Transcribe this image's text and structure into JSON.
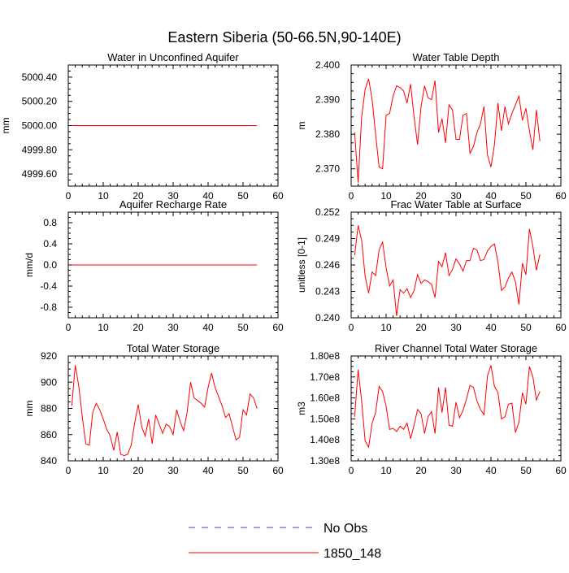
{
  "page_title": "Eastern Siberia (50-66.5N,90-140E)",
  "legend": {
    "entries": [
      {
        "label": "No Obs",
        "color": "#3a3ad6",
        "style": "dashed"
      },
      {
        "label": "1850_148",
        "color": "#ff0000",
        "style": "solid"
      }
    ]
  },
  "chart_data": [
    {
      "type": "line",
      "title": "Water in Unconfined Aquifer",
      "ylabel": "mm",
      "xlim": [
        0,
        60
      ],
      "ylim": [
        4999.5,
        5000.5
      ],
      "xticks": [
        0,
        10,
        20,
        30,
        40,
        50,
        60
      ],
      "yticks": [
        4999.6,
        4999.8,
        5000.0,
        5000.2,
        5000.4
      ],
      "ytick_labels": [
        "4999.60",
        "4999.80",
        "5000.00",
        "5000.20",
        "5000.40"
      ],
      "series": [
        {
          "color": "#ff0000",
          "x": [
            1,
            54
          ],
          "y": [
            5000.0,
            5000.0
          ]
        }
      ]
    },
    {
      "type": "line",
      "title": "Water Table Depth",
      "ylabel": "m",
      "xlim": [
        0,
        60
      ],
      "ylim": [
        2.365,
        2.4
      ],
      "xticks": [
        0,
        10,
        20,
        30,
        40,
        50,
        60
      ],
      "yticks": [
        2.37,
        2.38,
        2.39,
        2.4
      ],
      "ytick_labels": [
        "2.370",
        "2.380",
        "2.390",
        "2.400"
      ],
      "series": [
        {
          "color": "#ff0000",
          "x": [
            1,
            2,
            3,
            4,
            5,
            6,
            7,
            8,
            9,
            10,
            11,
            12,
            13,
            14,
            15,
            16,
            17,
            18,
            19,
            20,
            21,
            22,
            23,
            24,
            25,
            26,
            27,
            28,
            29,
            30,
            31,
            32,
            33,
            34,
            35,
            36,
            37,
            38,
            39,
            40,
            41,
            42,
            43,
            44,
            45,
            46,
            47,
            48,
            49,
            50,
            51,
            52,
            53,
            54
          ],
          "y": [
            2.3805,
            2.366,
            2.385,
            2.393,
            2.396,
            2.39,
            2.38,
            2.3705,
            2.37,
            2.3855,
            2.386,
            2.391,
            2.394,
            2.3935,
            2.3925,
            2.389,
            2.3945,
            2.385,
            2.377,
            2.388,
            2.394,
            2.3905,
            2.39,
            2.3955,
            2.3805,
            2.3845,
            2.3775,
            2.3885,
            2.387,
            2.3785,
            2.3785,
            2.3855,
            2.386,
            2.3745,
            2.3765,
            2.3805,
            2.383,
            2.388,
            2.374,
            2.3705,
            2.377,
            2.389,
            2.381,
            2.388,
            2.383,
            2.386,
            2.3885,
            2.391,
            2.384,
            2.3875,
            2.381,
            2.3755,
            2.387,
            2.378
          ]
        }
      ]
    },
    {
      "type": "line",
      "title": "Aquifer Recharge Rate",
      "ylabel": "mm/d",
      "xlim": [
        0,
        60
      ],
      "ylim": [
        -1.0,
        1.0
      ],
      "xticks": [
        0,
        10,
        20,
        30,
        40,
        50,
        60
      ],
      "yticks": [
        -0.8,
        -0.4,
        0.0,
        0.4,
        0.8
      ],
      "ytick_labels": [
        "-0.8",
        "-0.4",
        "0.0",
        "0.4",
        "0.8"
      ],
      "series": [
        {
          "color": "#ff0000",
          "x": [
            1,
            54
          ],
          "y": [
            0.0,
            0.0
          ]
        }
      ]
    },
    {
      "type": "line",
      "title": "Frac Water Table at Surface",
      "ylabel": "unitless [0-1]",
      "xlim": [
        0,
        60
      ],
      "ylim": [
        0.24,
        0.252
      ],
      "xticks": [
        0,
        10,
        20,
        30,
        40,
        50,
        60
      ],
      "yticks": [
        0.24,
        0.243,
        0.246,
        0.249,
        0.252
      ],
      "ytick_labels": [
        "0.240",
        "0.243",
        "0.246",
        "0.249",
        "0.252"
      ],
      "series": [
        {
          "color": "#ff0000",
          "x": [
            1,
            2,
            3,
            4,
            5,
            6,
            7,
            8,
            9,
            10,
            11,
            12,
            13,
            14,
            15,
            16,
            17,
            18,
            19,
            20,
            21,
            22,
            23,
            24,
            25,
            26,
            27,
            28,
            29,
            30,
            31,
            32,
            33,
            34,
            35,
            36,
            37,
            38,
            39,
            40,
            41,
            42,
            43,
            44,
            45,
            46,
            47,
            48,
            49,
            50,
            51,
            52,
            53,
            54
          ],
          "y": [
            0.2471,
            0.2505,
            0.2488,
            0.2447,
            0.2428,
            0.2452,
            0.2448,
            0.2477,
            0.2486,
            0.2457,
            0.2436,
            0.2443,
            0.2402,
            0.2432,
            0.2428,
            0.2433,
            0.2423,
            0.2431,
            0.2449,
            0.2439,
            0.2443,
            0.2441,
            0.2438,
            0.2423,
            0.2464,
            0.2458,
            0.2474,
            0.2448,
            0.2455,
            0.2467,
            0.2461,
            0.2453,
            0.2465,
            0.2465,
            0.2479,
            0.2477,
            0.2465,
            0.2466,
            0.2476,
            0.2481,
            0.2484,
            0.2463,
            0.2431,
            0.2435,
            0.2445,
            0.2452,
            0.2441,
            0.2415,
            0.2462,
            0.2449,
            0.2501,
            0.2481,
            0.2454,
            0.2472
          ]
        }
      ]
    },
    {
      "type": "line",
      "title": "Total Water Storage",
      "ylabel": "mm",
      "xlim": [
        0,
        60
      ],
      "ylim": [
        840,
        920
      ],
      "xticks": [
        0,
        10,
        20,
        30,
        40,
        50,
        60
      ],
      "yticks": [
        840,
        860,
        880,
        900,
        920
      ],
      "ytick_labels": [
        "840",
        "860",
        "880",
        "900",
        "920"
      ],
      "series": [
        {
          "color": "#ff0000",
          "x": [
            1,
            2,
            3,
            4,
            5,
            6,
            7,
            8,
            9,
            10,
            11,
            12,
            13,
            14,
            15,
            16,
            17,
            18,
            19,
            20,
            21,
            22,
            23,
            24,
            25,
            26,
            27,
            28,
            29,
            30,
            31,
            32,
            33,
            34,
            35,
            36,
            37,
            38,
            39,
            40,
            41,
            42,
            43,
            44,
            45,
            46,
            47,
            48,
            49,
            50,
            51,
            52,
            53,
            54
          ],
          "y": [
            882,
            913,
            897,
            874,
            853,
            852,
            877,
            884,
            879,
            872,
            864,
            859,
            848,
            862,
            845,
            844,
            845,
            852,
            869,
            883,
            866,
            859,
            872,
            853,
            875,
            868,
            861,
            868,
            866,
            860,
            879,
            870,
            863,
            877,
            900,
            888,
            886,
            884,
            881,
            896,
            907,
            896,
            889,
            882,
            873,
            876,
            866,
            856,
            858,
            879,
            875,
            891,
            888,
            880
          ]
        }
      ]
    },
    {
      "type": "line",
      "title": "River Channel Total Water Storage",
      "ylabel": "m3",
      "xlim": [
        0,
        60
      ],
      "ylim": [
        130000000,
        180000000
      ],
      "xticks": [
        0,
        10,
        20,
        30,
        40,
        50,
        60
      ],
      "yticks": [
        130000000,
        140000000,
        150000000,
        160000000,
        170000000,
        180000000
      ],
      "ytick_labels": [
        "1.30e8",
        "1.40e8",
        "1.50e8",
        "1.60e8",
        "1.70e8",
        "1.80e8"
      ],
      "series": [
        {
          "color": "#ff0000",
          "x": [
            1,
            2,
            3,
            4,
            5,
            6,
            7,
            8,
            9,
            10,
            11,
            12,
            13,
            14,
            15,
            16,
            17,
            18,
            19,
            20,
            21,
            22,
            23,
            24,
            25,
            26,
            27,
            28,
            29,
            30,
            31,
            32,
            33,
            34,
            35,
            36,
            37,
            38,
            39,
            40,
            41,
            42,
            43,
            44,
            45,
            46,
            47,
            48,
            49,
            50,
            51,
            52,
            53,
            54
          ],
          "y": [
            151000000,
            173500000,
            158500000,
            139500000,
            136500000,
            148000000,
            153000000,
            165500000,
            163000000,
            156000000,
            145000000,
            145500000,
            144000000,
            146500000,
            145000000,
            148000000,
            140500000,
            147000000,
            154500000,
            152500000,
            143000000,
            151000000,
            153500000,
            143000000,
            165000000,
            153000000,
            165000000,
            147000000,
            146500000,
            158000000,
            150500000,
            154000000,
            159500000,
            166000000,
            165000000,
            158500000,
            154500000,
            152000000,
            170500000,
            175500000,
            165500000,
            162500000,
            150000000,
            151000000,
            157000000,
            157500000,
            143500000,
            148500000,
            162500000,
            157000000,
            175000000,
            170000000,
            159000000,
            163000000
          ]
        }
      ]
    }
  ]
}
